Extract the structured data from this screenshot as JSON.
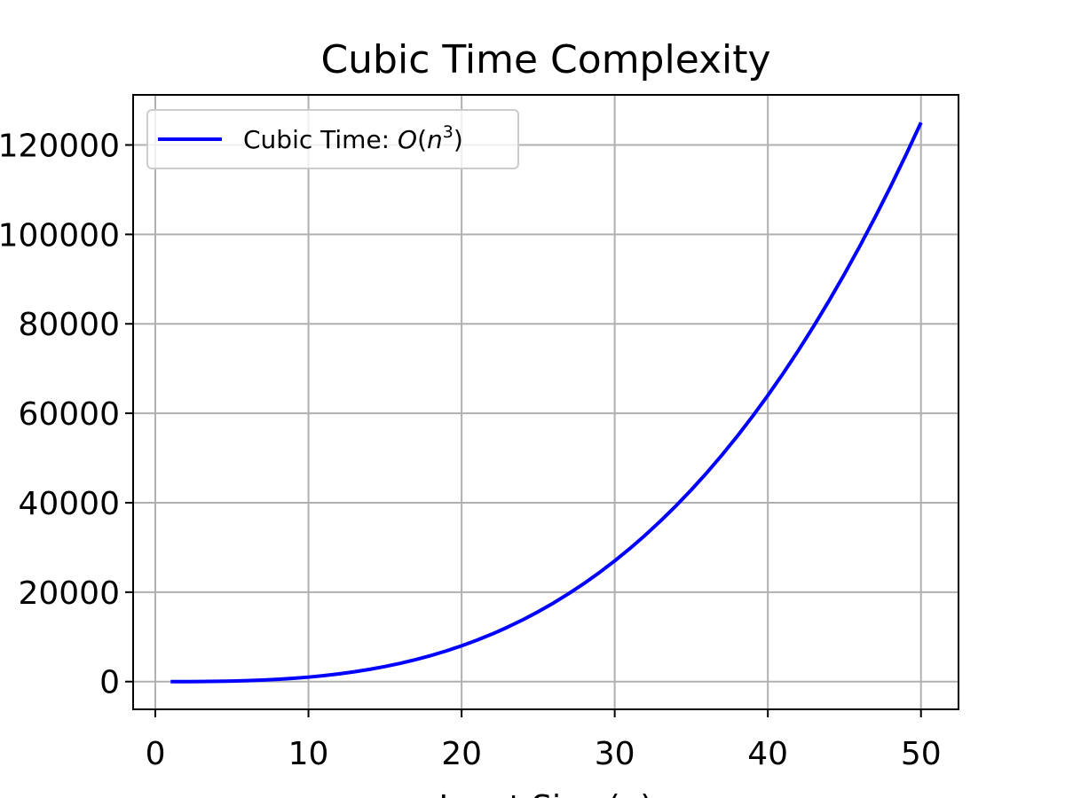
{
  "chart_data": {
    "type": "line",
    "title": "Cubic Time Complexity",
    "xlabel": "Input Size (n)",
    "ylabel": "",
    "xlim": [
      -1.45,
      52.45
    ],
    "ylim": [
      -6200,
      131200
    ],
    "x_ticks": [
      0,
      10,
      20,
      30,
      40,
      50
    ],
    "x_tick_labels": [
      "0",
      "10",
      "20",
      "30",
      "40",
      "50"
    ],
    "y_ticks": [
      0,
      20000,
      40000,
      60000,
      80000,
      100000,
      120000
    ],
    "y_tick_labels": [
      "0",
      "20000",
      "40000",
      "60000",
      "80000",
      "100000",
      "120000"
    ],
    "grid": true,
    "legend_position": "upper-left",
    "series": [
      {
        "name": "Cubic Time: O(n³)",
        "color": "#0000ff",
        "function": "n^3",
        "x": [
          1,
          2,
          3,
          4,
          5,
          6,
          7,
          8,
          9,
          10,
          11,
          12,
          13,
          14,
          15,
          16,
          17,
          18,
          19,
          20,
          21,
          22,
          23,
          24,
          25,
          26,
          27,
          28,
          29,
          30,
          31,
          32,
          33,
          34,
          35,
          36,
          37,
          38,
          39,
          40,
          41,
          42,
          43,
          44,
          45,
          46,
          47,
          48,
          49,
          50
        ],
        "y": [
          1,
          8,
          27,
          64,
          125,
          216,
          343,
          512,
          729,
          1000,
          1331,
          1728,
          2197,
          2744,
          3375,
          4096,
          4913,
          5832,
          6859,
          8000,
          9261,
          10648,
          12167,
          13824,
          15625,
          17576,
          19683,
          21952,
          24389,
          27000,
          29791,
          32768,
          35937,
          39304,
          42875,
          46656,
          50653,
          54872,
          59319,
          64000,
          68921,
          74088,
          79507,
          85184,
          91125,
          97336,
          103823,
          110592,
          117649,
          125000
        ]
      }
    ],
    "legend": {
      "label_prefix": "Cubic Time: ",
      "label_math_O": "O",
      "label_math_paren_open": "(",
      "label_math_n": "n",
      "label_math_exp": "3",
      "label_math_paren_close": ")"
    }
  }
}
